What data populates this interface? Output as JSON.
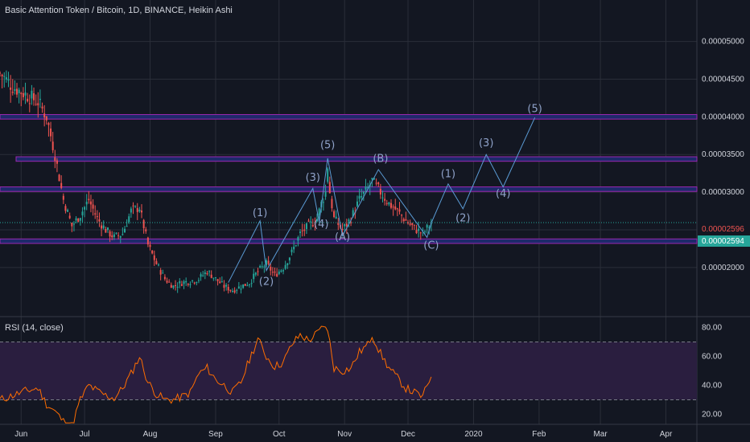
{
  "header": {
    "title": "Basic Attention Token / Bitcoin, 1D, BINANCE, Heikin Ashi",
    "rsi_label": "RSI (14, close)"
  },
  "colors": {
    "background": "#131722",
    "grid": "#2a2e39",
    "up": "#26a69a",
    "down": "#ef5350",
    "zone_fill": "#1e2a6a",
    "zone_border": "#9c27b0",
    "wave": "#5b9bd5",
    "rsi_line": "#ff6d00",
    "rsi_band": "#2a1e3f",
    "last_price": "#ef5350",
    "prev_price": "#26a69a"
  },
  "chart_data": [
    {
      "type": "candlestick",
      "title": "Basic Attention Token / Bitcoin, 1D, BINANCE, Heikin Ashi",
      "x_ticks": [
        "Jun",
        "Jul",
        "Aug",
        "Sep",
        "Oct",
        "Nov",
        "Dec",
        "2020",
        "Feb",
        "Mar",
        "Apr"
      ],
      "y_ticks": [
        "0.00002000",
        "0.00002500",
        "0.00003000",
        "0.00003500",
        "0.00004000",
        "0.00004500",
        "0.00005000"
      ],
      "ylim": [
        1.37e-05,
        5.55e-05
      ],
      "last_price": "0.00002596",
      "prev_price": "0.00002594",
      "close_path": [
        [
          0,
          4.58e-05
        ],
        [
          6,
          4.4e-05
        ],
        [
          12,
          4.3e-05
        ],
        [
          18,
          4.2e-05
        ],
        [
          22,
          4e-05
        ],
        [
          26,
          3.5e-05
        ],
        [
          30,
          2.9e-05
        ],
        [
          34,
          2.55e-05
        ],
        [
          38,
          2.7e-05
        ],
        [
          42,
          2.9e-05
        ],
        [
          46,
          2.65e-05
        ],
        [
          50,
          2.5e-05
        ],
        [
          54,
          2.4e-05
        ],
        [
          58,
          2.45e-05
        ],
        [
          62,
          2.75e-05
        ],
        [
          66,
          2.8e-05
        ],
        [
          70,
          2.3e-05
        ],
        [
          74,
          2.05e-05
        ],
        [
          78,
          1.85e-05
        ],
        [
          82,
          1.75e-05
        ],
        [
          86,
          1.8e-05
        ],
        [
          90,
          1.82e-05
        ],
        [
          94,
          1.85e-05
        ],
        [
          98,
          1.95e-05
        ],
        [
          102,
          1.85e-05
        ],
        [
          106,
          1.75e-05
        ],
        [
          110,
          1.7e-05
        ],
        [
          114,
          1.75e-05
        ],
        [
          118,
          1.8e-05
        ],
        [
          122,
          1.95e-05
        ],
        [
          126,
          2.05e-05
        ],
        [
          130,
          1.9e-05
        ],
        [
          134,
          2e-05
        ],
        [
          138,
          2.2e-05
        ],
        [
          142,
          2.45e-05
        ],
        [
          146,
          2.55e-05
        ],
        [
          150,
          2.65e-05
        ],
        [
          152,
          2.85e-05
        ],
        [
          154,
          3e-05
        ],
        [
          155,
          3.35e-05
        ],
        [
          156,
          3e-05
        ],
        [
          158,
          2.65e-05
        ],
        [
          162,
          2.5e-05
        ],
        [
          166,
          2.65e-05
        ],
        [
          170,
          2.9e-05
        ],
        [
          174,
          3.05e-05
        ],
        [
          176,
          3.15e-05
        ],
        [
          180,
          3e-05
        ],
        [
          184,
          2.85e-05
        ],
        [
          188,
          2.75e-05
        ],
        [
          192,
          2.62e-05
        ],
        [
          196,
          2.52e-05
        ],
        [
          200,
          2.45e-05
        ],
        [
          204,
          2.59e-05
        ]
      ],
      "wave_labels": [
        {
          "label": "(1)",
          "day": 123,
          "price": 2.68e-05
        },
        {
          "label": "(2)",
          "day": 126,
          "price": 1.77e-05
        },
        {
          "label": "(3)",
          "day": 148,
          "price": 3.15e-05
        },
        {
          "label": "(4)",
          "day": 152,
          "price": 2.53e-05
        },
        {
          "label": "(5)",
          "day": 155,
          "price": 3.58e-05
        },
        {
          "label": "(A)",
          "day": 162,
          "price": 2.36e-05
        },
        {
          "label": "(B)",
          "day": 180,
          "price": 3.4e-05
        },
        {
          "label": "(C)",
          "day": 204,
          "price": 2.25e-05
        },
        {
          "label": "(1)",
          "day": 212,
          "price": 3.2e-05
        },
        {
          "label": "(2)",
          "day": 219,
          "price": 2.61e-05
        },
        {
          "label": "(3)",
          "day": 230,
          "price": 3.61e-05
        },
        {
          "label": "(4)",
          "day": 238,
          "price": 2.94e-05
        },
        {
          "label": "(5)",
          "day": 253,
          "price": 4.06e-05
        }
      ]
    },
    {
      "type": "line",
      "title": "RSI (14, close)",
      "y_ticks": [
        "20.00",
        "40.00",
        "60.00",
        "80.00"
      ],
      "ylim": [
        13,
        87
      ],
      "band": [
        30,
        70
      ],
      "values": [
        [
          0,
          30
        ],
        [
          6,
          33
        ],
        [
          12,
          36
        ],
        [
          18,
          38
        ],
        [
          22,
          27
        ],
        [
          26,
          22
        ],
        [
          30,
          15
        ],
        [
          34,
          12
        ],
        [
          38,
          30
        ],
        [
          42,
          40
        ],
        [
          46,
          36
        ],
        [
          50,
          33
        ],
        [
          54,
          31
        ],
        [
          58,
          38
        ],
        [
          62,
          48
        ],
        [
          66,
          60
        ],
        [
          70,
          42
        ],
        [
          74,
          34
        ],
        [
          78,
          30
        ],
        [
          82,
          30
        ],
        [
          86,
          32
        ],
        [
          90,
          35
        ],
        [
          94,
          48
        ],
        [
          98,
          52
        ],
        [
          102,
          44
        ],
        [
          106,
          40
        ],
        [
          110,
          35
        ],
        [
          114,
          42
        ],
        [
          118,
          58
        ],
        [
          122,
          72
        ],
        [
          126,
          60
        ],
        [
          130,
          53
        ],
        [
          134,
          56
        ],
        [
          138,
          68
        ],
        [
          142,
          75
        ],
        [
          146,
          71
        ],
        [
          150,
          76
        ],
        [
          154,
          82
        ],
        [
          156,
          70
        ],
        [
          158,
          52
        ],
        [
          162,
          50
        ],
        [
          166,
          52
        ],
        [
          170,
          63
        ],
        [
          174,
          68
        ],
        [
          176,
          75
        ],
        [
          180,
          62
        ],
        [
          184,
          52
        ],
        [
          188,
          45
        ],
        [
          192,
          38
        ],
        [
          196,
          35
        ],
        [
          200,
          32
        ],
        [
          204,
          47
        ]
      ]
    }
  ]
}
